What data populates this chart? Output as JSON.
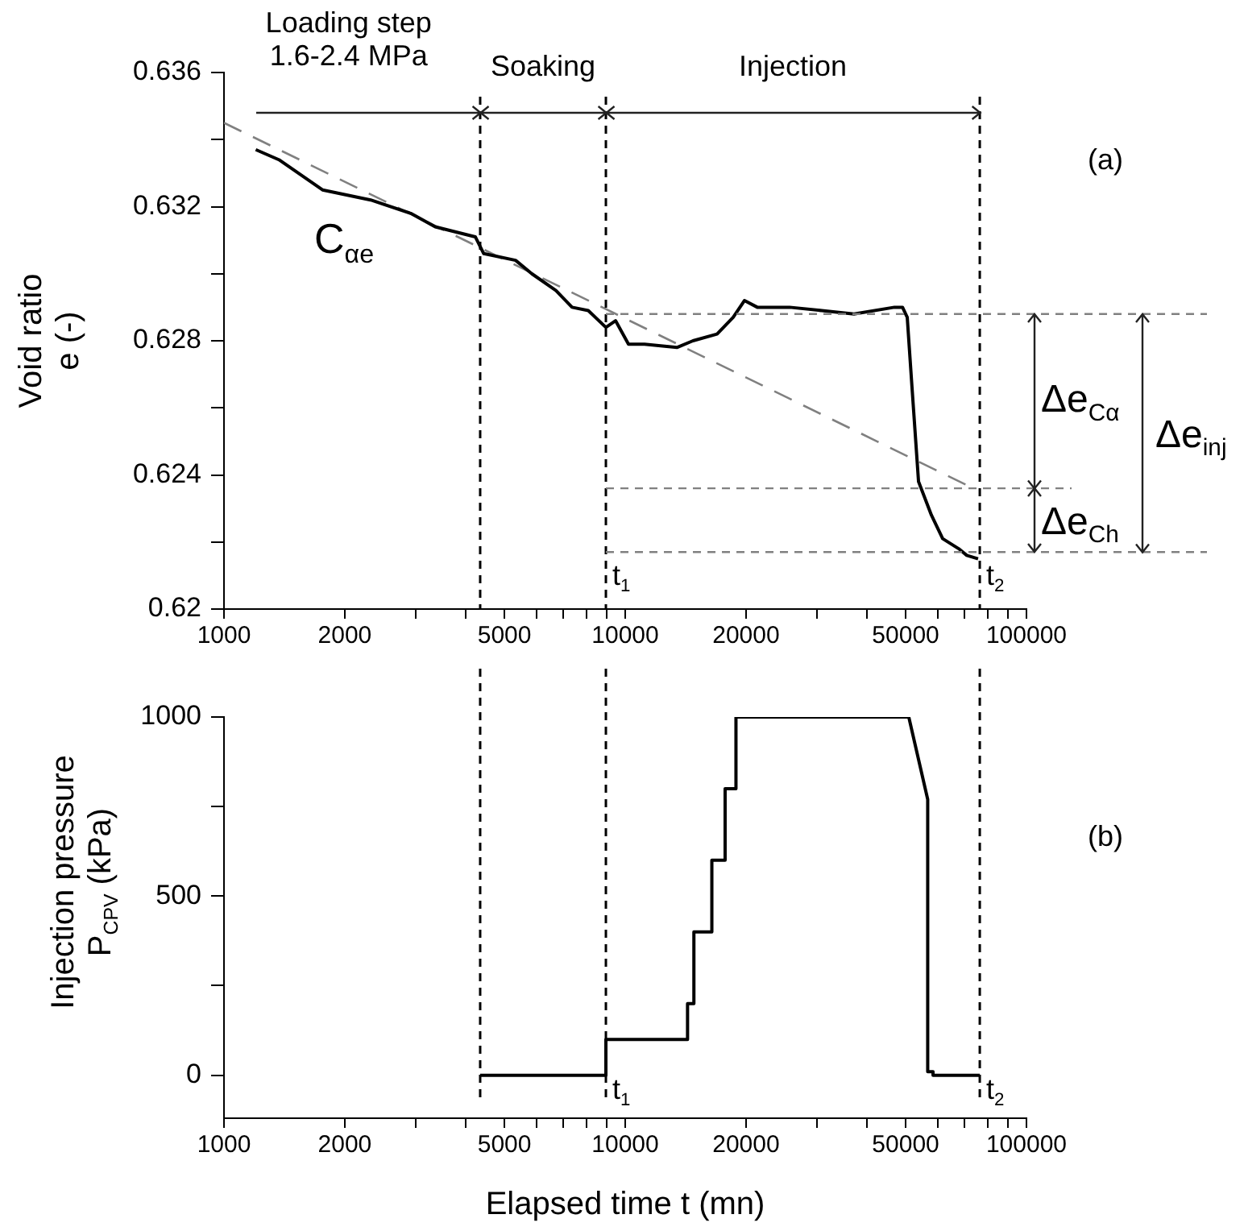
{
  "chart_data": [
    {
      "type": "line",
      "ylabel": "Void ratio\ne (-)",
      "log": "x",
      "grid": false,
      "legend": false,
      "marker": "none",
      "xlim": [
        1000,
        100000
      ],
      "xticks": [
        1000,
        2000,
        {
          "value": 3000,
          "label": null
        },
        {
          "value": 4000,
          "label": null
        },
        5000,
        {
          "value": 6000,
          "label": null
        },
        {
          "value": 7000,
          "label": null
        },
        {
          "value": 8000,
          "label": null
        },
        {
          "value": 9000,
          "label": null
        },
        10000,
        20000,
        {
          "value": 30000,
          "label": null
        },
        {
          "value": 40000,
          "label": null
        },
        50000,
        {
          "value": 60000,
          "label": null
        },
        {
          "value": 70000,
          "label": null
        },
        {
          "value": 80000,
          "label": null
        },
        {
          "value": 90000,
          "label": null
        },
        100000
      ],
      "ylim": [
        0.62,
        0.636
      ],
      "yticks": [
        0.62,
        {
          "value": 0.622,
          "label": null
        },
        0.624,
        {
          "value": 0.626,
          "label": null
        },
        0.628,
        {
          "value": 0.63,
          "label": null
        },
        0.632,
        {
          "value": 0.634,
          "label": null
        },
        0.636
      ],
      "series": [
        {
          "color": "#000000",
          "line_style": "solid",
          "x": [
            1200,
            1370,
            1760,
            2320,
            2920,
            3360,
            4230,
            4440,
            5330,
            5850,
            6720,
            7370,
            8090,
            8950,
            9460,
            10190,
            11170,
            13450,
            14750,
            16940,
            18580,
            19820,
            21340,
            25680,
            30900,
            37160,
            46880,
            49100,
            50450,
            51860,
            53830,
            57960,
            61830,
            67780,
            71000,
            75760
          ],
          "values": [
            0.6337,
            0.6334,
            0.6325,
            0.6322,
            0.6318,
            0.6314,
            0.6311,
            0.6306,
            0.6304,
            0.63,
            0.6295,
            0.629,
            0.6289,
            0.6284,
            0.6286,
            0.6279,
            0.6279,
            0.6278,
            0.628,
            0.6282,
            0.6287,
            0.6292,
            0.629,
            0.629,
            0.6289,
            0.6288,
            0.629,
            0.629,
            0.6287,
            0.6266,
            0.6238,
            0.6228,
            0.6221,
            0.6218,
            0.6216,
            0.6215
          ]
        },
        {
          "color": "#808080",
          "line_style": "dashed",
          "x": [
            1000,
            73700
          ],
          "values": [
            0.6345,
            0.6236
          ]
        }
      ],
      "ref_lines": [
        {
          "axis": "x",
          "value": 4350,
          "color": "#000000",
          "line_style": "dashed"
        },
        {
          "axis": "x",
          "value": 8950,
          "label": "t$_{1}$",
          "color": "#000000",
          "line_style": "dashed"
        },
        {
          "axis": "x",
          "value": 76500,
          "label": "t$_{2}$",
          "color": "#000000",
          "line_style": "dashed"
        },
        {
          "axis": "y",
          "value": 0.6288,
          "color": "#808080",
          "line_style": "dashed"
        },
        {
          "axis": "y",
          "value": 0.6236,
          "color": "#808080",
          "line_style": "dashed"
        },
        {
          "axis": "y",
          "value": 0.6217,
          "color": "#808080",
          "line_style": "dashed"
        }
      ],
      "annotations": [
        "Loading step\n1.6-2.4 MPa",
        "Soaking",
        "Injection",
        "C$_{αe}$",
        "(a)",
        "Δe$_{Cα}$",
        "Δe$_{Ch}$",
        "Δe$_{inj}$"
      ]
    },
    {
      "type": "line",
      "xlabel": "Elapsed time t (mn)",
      "ylabel": "Injection pressure\nP$_{CPV}$ (kPa)",
      "log": "x",
      "grid": false,
      "legend": false,
      "marker": "none",
      "xlim": [
        1000,
        100000
      ],
      "xticks": [
        1000,
        2000,
        {
          "value": 3000,
          "label": null
        },
        {
          "value": 4000,
          "label": null
        },
        5000,
        {
          "value": 6000,
          "label": null
        },
        {
          "value": 7000,
          "label": null
        },
        {
          "value": 8000,
          "label": null
        },
        {
          "value": 9000,
          "label": null
        },
        10000,
        20000,
        {
          "value": 30000,
          "label": null
        },
        {
          "value": 40000,
          "label": null
        },
        50000,
        {
          "value": 60000,
          "label": null
        },
        {
          "value": 70000,
          "label": null
        },
        {
          "value": 80000,
          "label": null
        },
        {
          "value": 90000,
          "label": null
        },
        100000
      ],
      "ylim": [
        -120,
        1000
      ],
      "yticks": [
        0,
        {
          "value": 250,
          "label": null
        },
        500,
        {
          "value": 750,
          "label": null
        },
        1000
      ],
      "series": [
        {
          "color": "#000000",
          "line_style": "solid",
          "x": [
            4350,
            8950,
            8950,
            14300,
            14300,
            14830,
            14830,
            16440,
            16440,
            17740,
            17740,
            18880,
            18880,
            50900,
            56740,
            56740,
            58500,
            58500,
            76500
          ],
          "values": [
            0,
            0,
            100,
            100,
            200,
            200,
            400,
            400,
            600,
            600,
            800,
            800,
            1000,
            1000,
            770,
            10,
            10,
            0,
            0
          ]
        }
      ],
      "ref_lines": [
        {
          "axis": "x",
          "value": 4350,
          "color": "#000000",
          "line_style": "dashed"
        },
        {
          "axis": "x",
          "value": 8950,
          "label": "t$_{1}$",
          "color": "#000000",
          "line_style": "dashed"
        },
        {
          "axis": "x",
          "value": 76500,
          "label": "t$_{2}$",
          "color": "#000000",
          "line_style": "dashed"
        }
      ],
      "annotations": [
        "(b)"
      ]
    }
  ]
}
